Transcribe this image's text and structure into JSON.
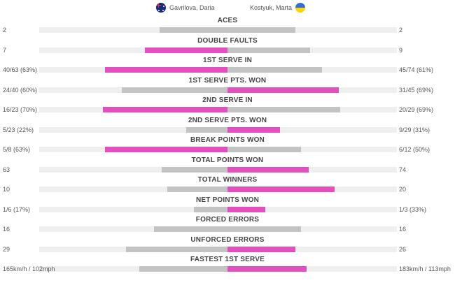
{
  "players": {
    "left": {
      "name": "Gavrilova, Daria",
      "flag": "australia-flag-icon"
    },
    "right": {
      "name": "Kostyuk, Marta",
      "flag": "ukraine-flag-icon"
    }
  },
  "colors": {
    "winner": "#e44fc0",
    "loser": "#c3c3c3",
    "track": "#efefef"
  },
  "stats": [
    {
      "label": "ACES",
      "left": "2",
      "right": "2",
      "left_frac": 0.36,
      "right_frac": 0.36,
      "winner": "none"
    },
    {
      "label": "DOUBLE FAULTS",
      "left": "7",
      "right": "9",
      "left_frac": 0.44,
      "right_frac": 0.44,
      "winner": "left"
    },
    {
      "label": "1ST SERVE IN",
      "left": "40/63 (63%)",
      "right": "45/74 (61%)",
      "left_frac": 0.65,
      "right_frac": 0.5,
      "winner": "left"
    },
    {
      "label": "1ST SERVE PTS. WON",
      "left": "24/40 (60%)",
      "right": "31/45 (69%)",
      "left_frac": 0.56,
      "right_frac": 0.59,
      "winner": "right"
    },
    {
      "label": "2ND SERVE IN",
      "left": "16/23 (70%)",
      "right": "20/29 (69%)",
      "left_frac": 0.66,
      "right_frac": 0.6,
      "winner": "left"
    },
    {
      "label": "2ND SERVE PTS. WON",
      "left": "5/23 (22%)",
      "right": "9/29 (31%)",
      "left_frac": 0.22,
      "right_frac": 0.28,
      "winner": "right"
    },
    {
      "label": "BREAK POINTS WON",
      "left": "5/8 (63%)",
      "right": "6/12 (50%)",
      "left_frac": 0.65,
      "right_frac": 0.39,
      "winner": "left"
    },
    {
      "label": "TOTAL POINTS WON",
      "left": "63",
      "right": "74",
      "left_frac": 0.35,
      "right_frac": 0.43,
      "winner": "right"
    },
    {
      "label": "TOTAL WINNERS",
      "left": "10",
      "right": "20",
      "left_frac": 0.32,
      "right_frac": 0.57,
      "winner": "right"
    },
    {
      "label": "NET POINTS WON",
      "left": "1/6 (17%)",
      "right": "1/3 (33%)",
      "left_frac": 0.18,
      "right_frac": 0.2,
      "winner": "right"
    },
    {
      "label": "FORCED ERRORS",
      "left": "16",
      "right": "16",
      "left_frac": 0.39,
      "right_frac": 0.39,
      "winner": "none"
    },
    {
      "label": "UNFORCED ERRORS",
      "left": "29",
      "right": "26",
      "left_frac": 0.54,
      "right_frac": 0.36,
      "winner": "right"
    },
    {
      "label": "FASTEST 1ST SERVE",
      "left": "165km/h / 102mph",
      "right": "183km/h / 113mph",
      "left_frac": 0.47,
      "right_frac": 0.42,
      "winner": "right"
    }
  ]
}
